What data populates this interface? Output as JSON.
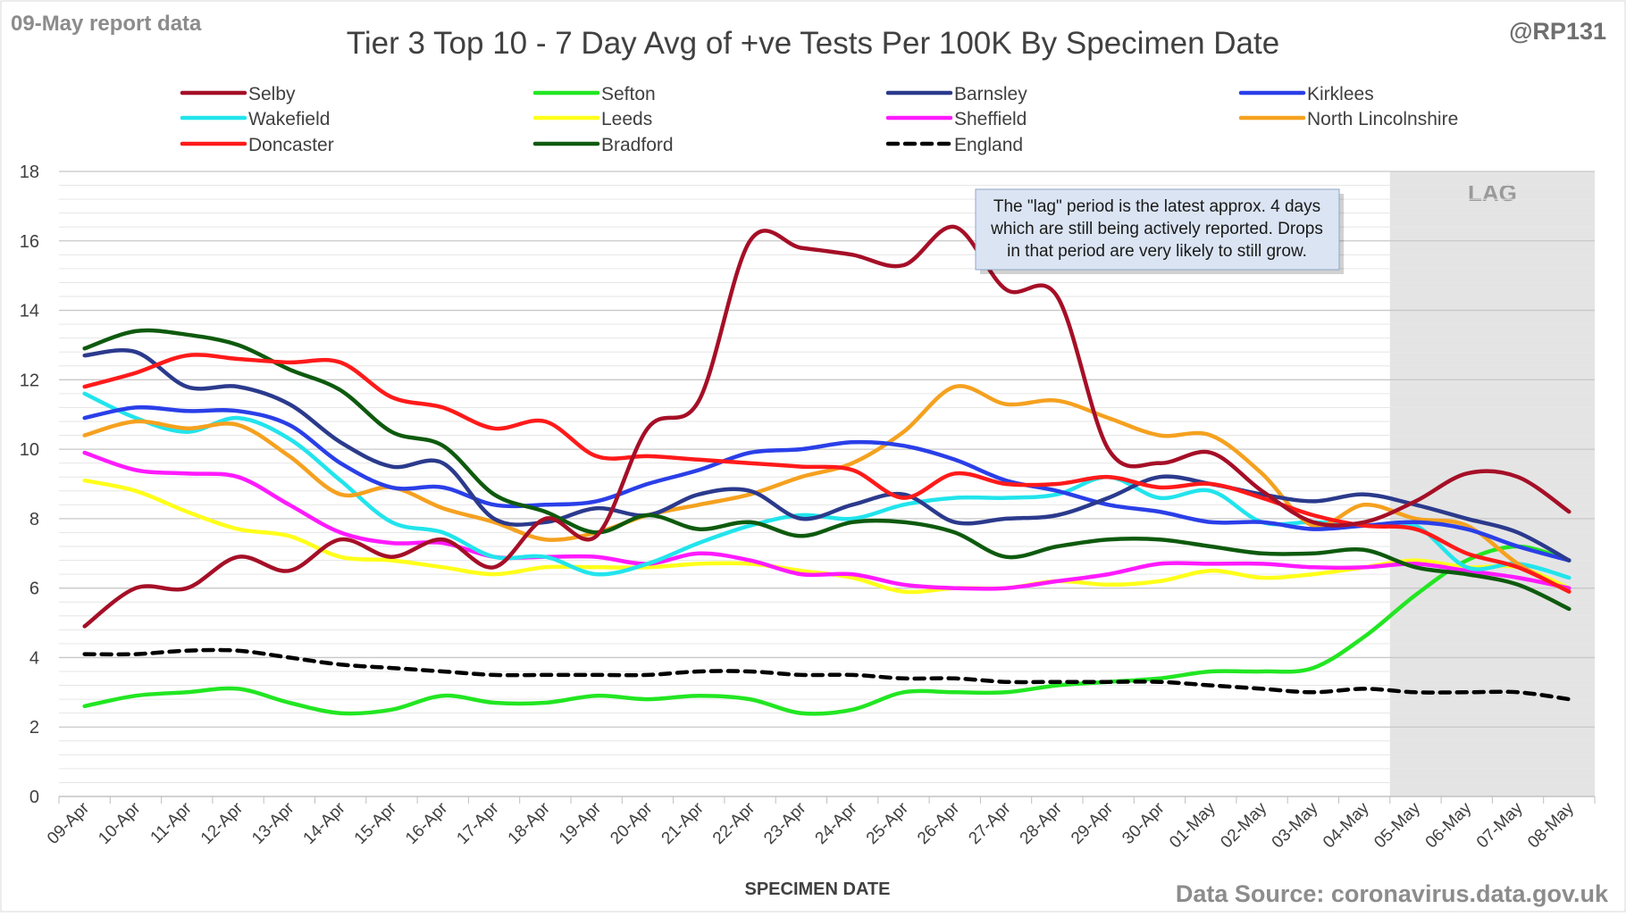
{
  "report_label": "09-May report data",
  "handle": "@RP131",
  "source": "Data Source: coronavirus.data.gov.uk",
  "annotation": {
    "lines": [
      "The \"lag\" period is the latest approx. 4 days",
      "which are still being actively reported.  Drops",
      "in that period are very likely to still grow."
    ]
  },
  "lag_label": "LAG",
  "chart_data": {
    "type": "line",
    "title": "Tier 3 Top 10 - 7 Day Avg of +ve Tests Per 100K By Specimen Date",
    "xlabel": "SPECIMEN DATE",
    "ylabel": "",
    "ylim": [
      0,
      18
    ],
    "yticks": [
      0,
      2,
      4,
      6,
      8,
      10,
      12,
      14,
      16,
      18
    ],
    "grid": true,
    "legend_position": "top",
    "lag_period": [
      "05-May",
      "08-May"
    ],
    "categories": [
      "09-Apr",
      "10-Apr",
      "11-Apr",
      "12-Apr",
      "13-Apr",
      "14-Apr",
      "15-Apr",
      "16-Apr",
      "17-Apr",
      "18-Apr",
      "19-Apr",
      "20-Apr",
      "21-Apr",
      "22-Apr",
      "23-Apr",
      "24-Apr",
      "25-Apr",
      "26-Apr",
      "27-Apr",
      "28-Apr",
      "29-Apr",
      "30-Apr",
      "01-May",
      "02-May",
      "03-May",
      "04-May",
      "05-May",
      "06-May",
      "07-May",
      "08-May"
    ],
    "series": [
      {
        "name": "Selby",
        "color": "#a50f27",
        "dash": false,
        "values": [
          4.9,
          6.0,
          6.0,
          6.9,
          6.5,
          7.4,
          6.9,
          7.4,
          6.6,
          8.0,
          7.5,
          10.6,
          11.4,
          16.0,
          15.8,
          15.6,
          15.3,
          16.4,
          14.6,
          14.4,
          10.0,
          9.6,
          9.9,
          8.8,
          7.9,
          7.9,
          8.5,
          9.3,
          9.2,
          8.2
        ]
      },
      {
        "name": "Sefton",
        "color": "#22e622",
        "dash": false,
        "values": [
          2.6,
          2.9,
          3.0,
          3.1,
          2.7,
          2.4,
          2.5,
          2.9,
          2.7,
          2.7,
          2.9,
          2.8,
          2.9,
          2.8,
          2.4,
          2.5,
          3.0,
          3.0,
          3.0,
          3.2,
          3.3,
          3.4,
          3.6,
          3.6,
          3.7,
          4.6,
          5.8,
          6.8,
          7.2,
          6.8
        ]
      },
      {
        "name": "Barnsley",
        "color": "#2b3a8c",
        "dash": false,
        "values": [
          12.7,
          12.8,
          11.8,
          11.8,
          11.3,
          10.2,
          9.5,
          9.6,
          8.0,
          7.9,
          8.3,
          8.1,
          8.7,
          8.8,
          8.0,
          8.4,
          8.7,
          7.9,
          8.0,
          8.1,
          8.6,
          9.2,
          9.0,
          8.7,
          8.5,
          8.7,
          8.4,
          8.0,
          7.6,
          6.8
        ]
      },
      {
        "name": "Kirklees",
        "color": "#2a3fe8",
        "dash": false,
        "values": [
          10.9,
          11.2,
          11.1,
          11.1,
          10.7,
          9.6,
          8.9,
          8.9,
          8.4,
          8.4,
          8.5,
          9.0,
          9.4,
          9.9,
          10.0,
          10.2,
          10.1,
          9.7,
          9.1,
          8.8,
          8.4,
          8.2,
          7.9,
          7.9,
          7.7,
          7.8,
          7.9,
          7.7,
          7.2,
          6.8
        ]
      },
      {
        "name": "Wakefield",
        "color": "#22e4ec",
        "dash": false,
        "values": [
          11.6,
          10.9,
          10.5,
          10.9,
          10.3,
          9.1,
          7.9,
          7.6,
          6.9,
          6.9,
          6.4,
          6.7,
          7.3,
          7.8,
          8.1,
          8.0,
          8.4,
          8.6,
          8.6,
          8.7,
          9.2,
          8.6,
          8.8,
          7.9,
          7.9,
          7.8,
          7.8,
          6.6,
          6.7,
          6.3
        ]
      },
      {
        "name": "Leeds",
        "color": "#ffff1a",
        "dash": false,
        "values": [
          9.1,
          8.8,
          8.2,
          7.7,
          7.5,
          6.9,
          6.8,
          6.6,
          6.4,
          6.6,
          6.6,
          6.6,
          6.7,
          6.7,
          6.5,
          6.3,
          5.9,
          6.0,
          6.0,
          6.2,
          6.1,
          6.2,
          6.5,
          6.3,
          6.4,
          6.6,
          6.8,
          6.6,
          6.6,
          6.0
        ]
      },
      {
        "name": "Sheffield",
        "color": "#ff1aff",
        "dash": false,
        "values": [
          9.9,
          9.4,
          9.3,
          9.2,
          8.4,
          7.6,
          7.3,
          7.3,
          6.9,
          6.9,
          6.9,
          6.7,
          7.0,
          6.8,
          6.4,
          6.4,
          6.1,
          6.0,
          6.0,
          6.2,
          6.4,
          6.7,
          6.7,
          6.7,
          6.6,
          6.6,
          6.7,
          6.5,
          6.3,
          6.0
        ]
      },
      {
        "name": "North Lincolnshire",
        "color": "#f5a11f",
        "dash": false,
        "values": [
          10.4,
          10.8,
          10.6,
          10.7,
          9.8,
          8.7,
          8.9,
          8.3,
          7.9,
          7.4,
          7.6,
          8.1,
          8.4,
          8.7,
          9.2,
          9.6,
          10.5,
          11.8,
          11.3,
          11.4,
          10.9,
          10.4,
          10.4,
          9.3,
          7.8,
          8.4,
          8.0,
          7.8,
          6.7,
          5.9
        ]
      },
      {
        "name": "Doncaster",
        "color": "#ff1a1a",
        "dash": false,
        "values": [
          11.8,
          12.2,
          12.7,
          12.6,
          12.5,
          12.5,
          11.5,
          11.2,
          10.6,
          10.8,
          9.8,
          9.8,
          9.7,
          9.6,
          9.5,
          9.4,
          8.6,
          9.3,
          9.0,
          9.0,
          9.2,
          8.9,
          9.0,
          8.6,
          8.1,
          7.8,
          7.7,
          7.0,
          6.6,
          5.9
        ]
      },
      {
        "name": "Bradford",
        "color": "#0e5a0e",
        "dash": false,
        "values": [
          12.9,
          13.4,
          13.3,
          13.0,
          12.3,
          11.7,
          10.5,
          10.1,
          8.7,
          8.2,
          7.6,
          8.1,
          7.7,
          7.9,
          7.5,
          7.9,
          7.9,
          7.6,
          6.9,
          7.2,
          7.4,
          7.4,
          7.2,
          7.0,
          7.0,
          7.1,
          6.6,
          6.4,
          6.1,
          5.4
        ]
      },
      {
        "name": "England",
        "color": "#000000",
        "dash": true,
        "values": [
          4.1,
          4.1,
          4.2,
          4.2,
          4.0,
          3.8,
          3.7,
          3.6,
          3.5,
          3.5,
          3.5,
          3.5,
          3.6,
          3.6,
          3.5,
          3.5,
          3.4,
          3.4,
          3.3,
          3.3,
          3.3,
          3.3,
          3.2,
          3.1,
          3.0,
          3.1,
          3.0,
          3.0,
          3.0,
          2.8
        ]
      }
    ]
  }
}
